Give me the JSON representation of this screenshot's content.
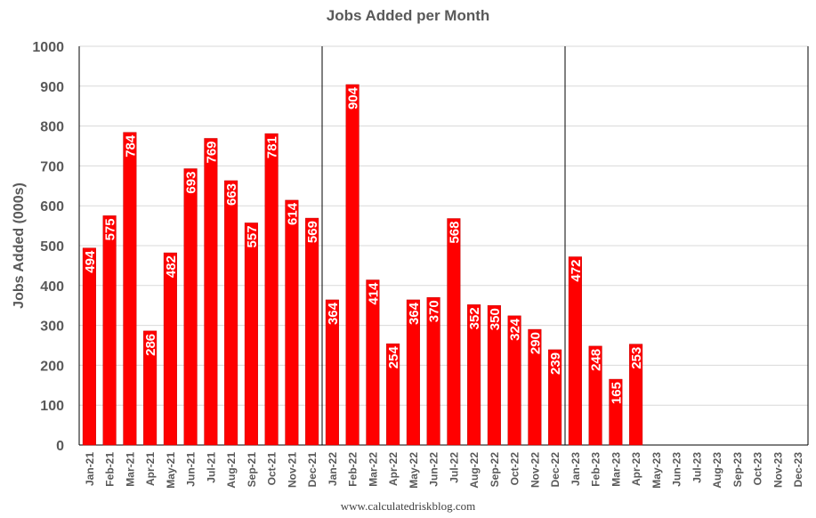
{
  "chart_data": {
    "type": "bar",
    "title": "Jobs Added per Month",
    "xlabel": "",
    "ylabel": "Jobs Added (000s)",
    "ylim": [
      0,
      1000
    ],
    "yticks": [
      0,
      100,
      200,
      300,
      400,
      500,
      600,
      700,
      800,
      900,
      1000
    ],
    "grid": true,
    "legend": "none",
    "bar_color": "#ff0000",
    "label_color": "#ffffff",
    "year_dividers_after": [
      "Dec-21",
      "Dec-22"
    ],
    "categories": [
      "Jan-21",
      "Feb-21",
      "Mar-21",
      "Apr-21",
      "May-21",
      "Jun-21",
      "Jul-21",
      "Aug-21",
      "Sep-21",
      "Oct-21",
      "Nov-21",
      "Dec-21",
      "Jan-22",
      "Feb-22",
      "Mar-22",
      "Apr-22",
      "May-22",
      "Jun-22",
      "Jul-22",
      "Aug-22",
      "Sep-22",
      "Oct-22",
      "Nov-22",
      "Dec-22",
      "Jan-23",
      "Feb-23",
      "Mar-23",
      "Apr-23",
      "May-23",
      "Jun-23",
      "Jul-23",
      "Aug-23",
      "Sep-23",
      "Oct-23",
      "Nov-23",
      "Dec-23"
    ],
    "values": [
      494,
      575,
      784,
      286,
      482,
      693,
      769,
      663,
      557,
      781,
      614,
      569,
      364,
      904,
      414,
      254,
      364,
      370,
      568,
      352,
      350,
      324,
      290,
      239,
      472,
      248,
      165,
      253,
      null,
      null,
      null,
      null,
      null,
      null,
      null,
      null
    ]
  },
  "source": "www.calculatedriskblog.com"
}
